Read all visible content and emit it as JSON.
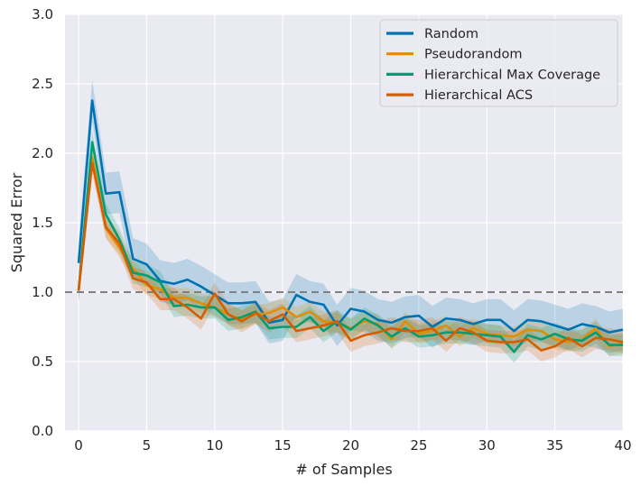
{
  "chart_data": {
    "type": "line",
    "xlabel": "# of Samples",
    "ylabel": "Squared Error",
    "xlim": [
      -1,
      40
    ],
    "ylim": [
      0,
      3.0
    ],
    "xticks": [
      "0",
      "5",
      "10",
      "15",
      "20",
      "25",
      "30",
      "35",
      "40"
    ],
    "yticks": [
      "0.0",
      "0.5",
      "1.0",
      "1.5",
      "2.0",
      "2.5",
      "3.0"
    ],
    "grid": true,
    "legend_position": "top-right",
    "reference_line": {
      "y": 1.0,
      "style": "dashed",
      "color": "#808080"
    },
    "x": [
      0,
      1,
      2,
      3,
      4,
      5,
      6,
      7,
      8,
      9,
      10,
      11,
      12,
      13,
      14,
      15,
      16,
      17,
      18,
      19,
      20,
      21,
      22,
      23,
      24,
      25,
      26,
      27,
      28,
      29,
      30,
      31,
      32,
      33,
      34,
      35,
      36,
      37,
      38,
      39,
      40
    ],
    "series": [
      {
        "name": "Random",
        "color": "#0173b2",
        "values": [
          1.21,
          2.38,
          1.71,
          1.72,
          1.24,
          1.2,
          1.08,
          1.06,
          1.09,
          1.04,
          0.98,
          0.92,
          0.92,
          0.93,
          0.78,
          0.8,
          0.98,
          0.93,
          0.91,
          0.76,
          0.88,
          0.86,
          0.8,
          0.78,
          0.82,
          0.83,
          0.75,
          0.81,
          0.8,
          0.77,
          0.8,
          0.8,
          0.72,
          0.8,
          0.79,
          0.76,
          0.73,
          0.77,
          0.75,
          0.71,
          0.73
        ],
        "band": 0.15
      },
      {
        "name": "Pseudorandom",
        "color": "#de8f05",
        "values": [
          1.01,
          1.97,
          1.46,
          1.32,
          1.17,
          1.05,
          1.02,
          0.96,
          0.96,
          0.92,
          0.89,
          0.84,
          0.8,
          0.84,
          0.85,
          0.89,
          0.82,
          0.86,
          0.79,
          0.78,
          0.74,
          0.79,
          0.77,
          0.66,
          0.79,
          0.7,
          0.72,
          0.76,
          0.68,
          0.74,
          0.7,
          0.69,
          0.68,
          0.73,
          0.72,
          0.66,
          0.64,
          0.66,
          0.74,
          0.61,
          0.63
        ],
        "band": 0.07
      },
      {
        "name": "Hierarchical Max Coverage",
        "color": "#029e73",
        "values": [
          1.01,
          2.08,
          1.56,
          1.38,
          1.14,
          1.12,
          1.07,
          0.9,
          0.91,
          0.89,
          0.89,
          0.8,
          0.82,
          0.86,
          0.74,
          0.75,
          0.75,
          0.82,
          0.72,
          0.79,
          0.73,
          0.81,
          0.76,
          0.68,
          0.74,
          0.68,
          0.69,
          0.71,
          0.71,
          0.7,
          0.69,
          0.68,
          0.57,
          0.69,
          0.66,
          0.7,
          0.66,
          0.65,
          0.71,
          0.62,
          0.62
        ],
        "band": 0.08
      },
      {
        "name": "Hierarchical ACS",
        "color": "#d55e00",
        "values": [
          1.01,
          1.93,
          1.47,
          1.35,
          1.1,
          1.07,
          0.95,
          0.95,
          0.89,
          0.81,
          0.99,
          0.84,
          0.79,
          0.85,
          0.79,
          0.84,
          0.72,
          0.74,
          0.76,
          0.79,
          0.65,
          0.69,
          0.71,
          0.74,
          0.72,
          0.72,
          0.74,
          0.65,
          0.74,
          0.71,
          0.65,
          0.64,
          0.64,
          0.66,
          0.58,
          0.61,
          0.67,
          0.61,
          0.67,
          0.66,
          0.64
        ],
        "band": 0.08
      }
    ]
  }
}
